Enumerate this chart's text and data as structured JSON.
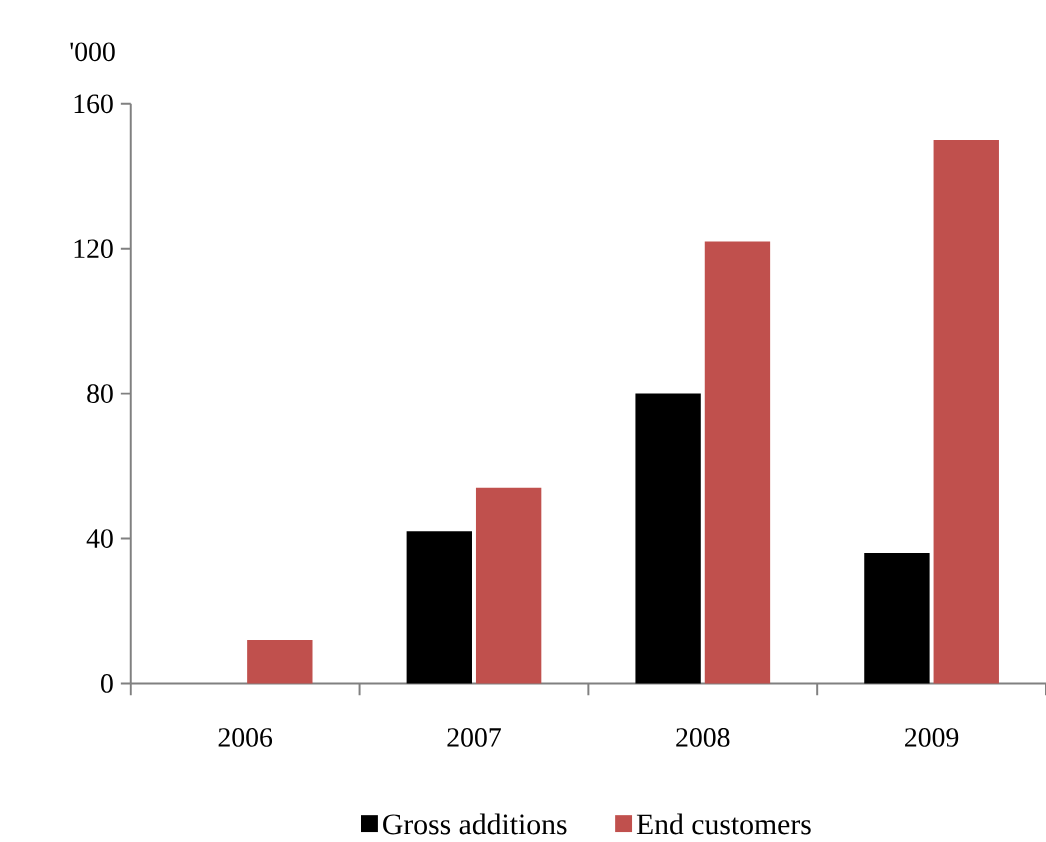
{
  "chart_data": {
    "type": "bar",
    "ylabel": "'000",
    "categories": [
      "2006",
      "2007",
      "2008",
      "2009"
    ],
    "series": [
      {
        "name": "Gross additions",
        "color": "#000000",
        "values": [
          null,
          42,
          80,
          36
        ]
      },
      {
        "name": "End customers",
        "color": "#c0504d",
        "values": [
          12,
          54,
          122,
          150
        ]
      }
    ],
    "ylim": [
      0,
      160
    ],
    "yticks": [
      0,
      40,
      80,
      120,
      160
    ],
    "grid": false,
    "legend": "bottom"
  }
}
